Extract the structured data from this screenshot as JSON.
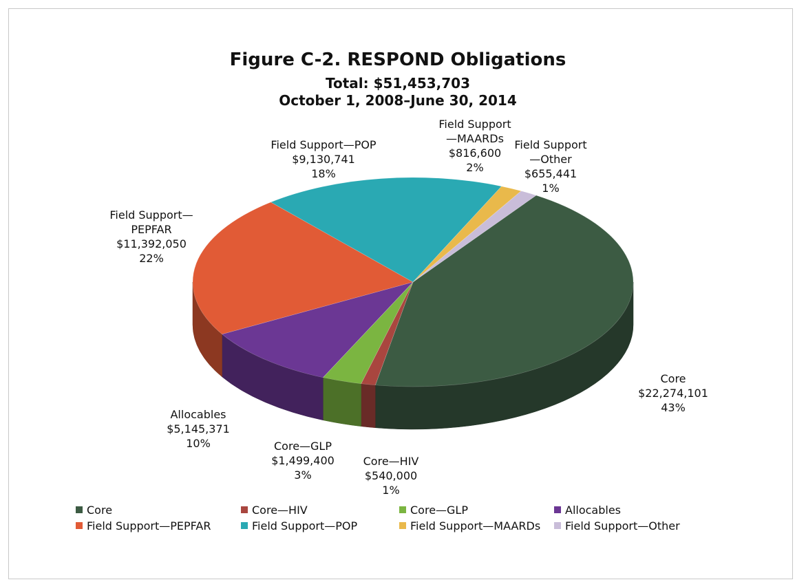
{
  "chart_data": {
    "type": "pie",
    "title": "Figure C-2.  RESPOND Obligations",
    "subtitle": "Total: $51,453,703",
    "period": "October 1, 2008–June 30, 2014",
    "categories": [
      "Core",
      "Core—HIV",
      "Core—GLP",
      "Allocables",
      "Field Support—PEPFAR",
      "Field Support—POP",
      "Field Support—MAARDs",
      "Field Support—Other"
    ],
    "values": [
      22274101,
      540000,
      1499400,
      5145371,
      11392050,
      9130741,
      816600,
      655441
    ],
    "value_labels": [
      "$22,274,101",
      "$540,000",
      "$1,499,400",
      "$5,145,371",
      "$11,392,050",
      "$9,130,741",
      "$816,600",
      "$655,441"
    ],
    "percents": [
      43,
      1,
      3,
      10,
      22,
      18,
      2,
      1
    ],
    "percent_labels": [
      "43%",
      "1%",
      "3%",
      "10%",
      "22%",
      "18%",
      "2%",
      "1%"
    ],
    "colors": [
      "#3c5b43",
      "#a9463f",
      "#7bb541",
      "#6b3794",
      "#e15b36",
      "#2aa9b3",
      "#e9b94b",
      "#c9bdd9"
    ],
    "legend": "bottom"
  }
}
